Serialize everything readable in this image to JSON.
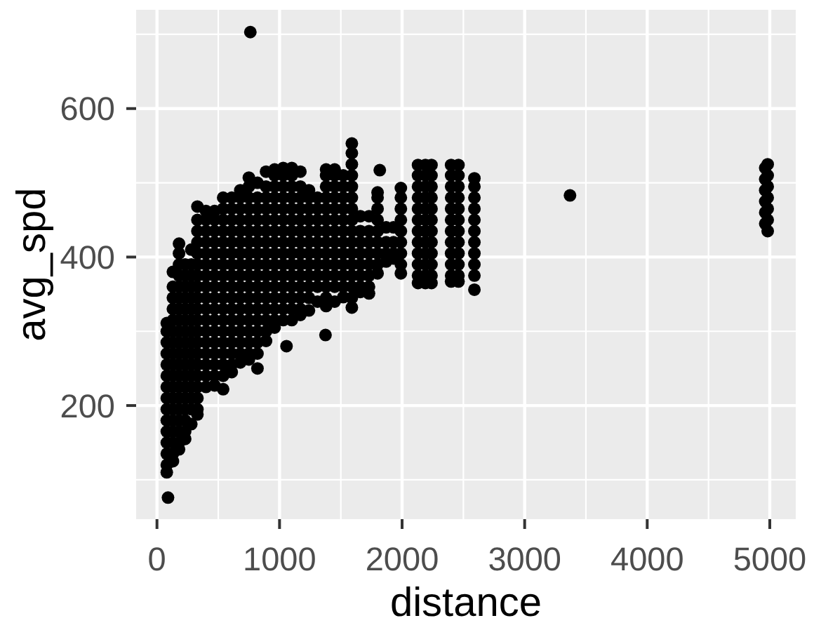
{
  "chart_data": {
    "type": "scatter",
    "xlabel": "distance",
    "ylabel": "avg_spd",
    "xlim": [
      -170,
      5212
    ],
    "ylim": [
      47,
      733
    ],
    "xticks": [
      0,
      {
        "value": 500,
        "label": null
      },
      1000,
      {
        "value": 1500,
        "label": null
      },
      2000,
      {
        "value": 2500,
        "label": null
      },
      3000,
      {
        "value": 3500,
        "label": null
      },
      4000,
      {
        "value": 4500,
        "label": null
      },
      5000
    ],
    "yticks": [
      {
        "value": 100,
        "label": null
      },
      200,
      {
        "value": 300,
        "label": null
      },
      400,
      {
        "value": 500,
        "label": null
      },
      600,
      {
        "value": 700,
        "label": null
      }
    ],
    "grid": true,
    "marker": "circle",
    "color": "#000000",
    "x": [
      80,
      80,
      80,
      80,
      80,
      80,
      80,
      80,
      80,
      80,
      80,
      80,
      80,
      80,
      80,
      130,
      130,
      130,
      130,
      130,
      130,
      130,
      130,
      130,
      130,
      130,
      130,
      130,
      130,
      130,
      130,
      130,
      130,
      180,
      180,
      180,
      180,
      180,
      180,
      180,
      180,
      180,
      180,
      180,
      180,
      180,
      180,
      180,
      180,
      180,
      180,
      180,
      180,
      230,
      230,
      230,
      230,
      230,
      230,
      230,
      230,
      230,
      230,
      230,
      230,
      230,
      230,
      230,
      230,
      230,
      280,
      280,
      280,
      280,
      280,
      280,
      280,
      280,
      280,
      280,
      280,
      280,
      280,
      280,
      280,
      280,
      330,
      330,
      330,
      330,
      330,
      330,
      330,
      330,
      330,
      330,
      330,
      330,
      330,
      330,
      330,
      330,
      330,
      330,
      330,
      330,
      400,
      400,
      400,
      400,
      400,
      400,
      400,
      400,
      400,
      400,
      400,
      400,
      400,
      400,
      400,
      400,
      400,
      470,
      470,
      470,
      470,
      470,
      470,
      470,
      470,
      470,
      470,
      470,
      470,
      470,
      470,
      470,
      470,
      470,
      540,
      540,
      540,
      540,
      540,
      540,
      540,
      540,
      540,
      540,
      540,
      540,
      540,
      540,
      540,
      540,
      540,
      540,
      610,
      610,
      610,
      610,
      610,
      610,
      610,
      610,
      610,
      610,
      610,
      610,
      610,
      610,
      610,
      610,
      610,
      680,
      680,
      680,
      680,
      680,
      680,
      680,
      680,
      680,
      680,
      680,
      680,
      680,
      680,
      680,
      680,
      680,
      750,
      750,
      750,
      750,
      750,
      750,
      750,
      750,
      750,
      750,
      750,
      750,
      750,
      750,
      750,
      750,
      750,
      750,
      820,
      820,
      820,
      820,
      820,
      820,
      820,
      820,
      820,
      820,
      820,
      820,
      820,
      820,
      820,
      820,
      820,
      890,
      890,
      890,
      890,
      890,
      890,
      890,
      890,
      890,
      890,
      890,
      890,
      890,
      890,
      890,
      890,
      960,
      960,
      960,
      960,
      960,
      960,
      960,
      960,
      960,
      960,
      960,
      960,
      960,
      960,
      960,
      960,
      1030,
      1030,
      1030,
      1030,
      1030,
      1030,
      1030,
      1030,
      1030,
      1030,
      1030,
      1030,
      1030,
      1030,
      1030,
      1100,
      1100,
      1100,
      1100,
      1100,
      1100,
      1100,
      1100,
      1100,
      1100,
      1100,
      1100,
      1100,
      1100,
      1100,
      1170,
      1170,
      1170,
      1170,
      1170,
      1170,
      1170,
      1170,
      1170,
      1170,
      1170,
      1170,
      1170,
      1170,
      1240,
      1240,
      1240,
      1240,
      1240,
      1240,
      1240,
      1240,
      1240,
      1240,
      1240,
      1240,
      1310,
      1310,
      1310,
      1310,
      1310,
      1310,
      1310,
      1310,
      1310,
      1310,
      1380,
      1380,
      1380,
      1380,
      1380,
      1380,
      1380,
      1380,
      1380,
      1380,
      1380,
      1380,
      1380,
      1380,
      1450,
      1450,
      1450,
      1450,
      1450,
      1450,
      1450,
      1450,
      1450,
      1450,
      1450,
      1450,
      1450,
      1520,
      1520,
      1520,
      1520,
      1520,
      1520,
      1520,
      1520,
      1520,
      1520,
      1520,
      1520,
      1590,
      1590,
      1590,
      1590,
      1590,
      1590,
      1590,
      1590,
      1590,
      1590,
      1590,
      1590,
      1590,
      1590,
      1590,
      1590,
      1660,
      1660,
      1660,
      1660,
      1660,
      1660,
      1660,
      1660,
      1730,
      1730,
      1730,
      1730,
      1730,
      1730,
      1730,
      1730,
      1800,
      1800,
      1800,
      1800,
      1800,
      1800,
      1800,
      1800,
      1800,
      1870,
      1870,
      1870,
      1870,
      1930,
      1930,
      1930,
      1930,
      1990,
      1990,
      1990,
      1990,
      1990,
      1990,
      1990,
      1990,
      1990,
      2130,
      2130,
      2130,
      2130,
      2130,
      2130,
      2130,
      2130,
      2130,
      2130,
      2130,
      2130,
      2190,
      2190,
      2190,
      2190,
      2190,
      2190,
      2190,
      2190,
      2190,
      2190,
      2190,
      2190,
      2240,
      2240,
      2240,
      2240,
      2240,
      2240,
      2240,
      2240,
      2240,
      2240,
      2240,
      2240,
      2400,
      2400,
      2400,
      2400,
      2400,
      2400,
      2400,
      2400,
      2400,
      2400,
      2400,
      2400,
      2460,
      2460,
      2460,
      2460,
      2460,
      2460,
      2460,
      2460,
      2460,
      2460,
      2460,
      2460,
      2590,
      2590,
      2590,
      2590,
      2590,
      2590,
      2590,
      2590,
      2590,
      2590,
      2590,
      90,
      762,
      3370,
      1057,
      1375,
      1818,
      4963,
      4963,
      4963,
      4963,
      4963,
      4963,
      4983,
      4983,
      4983,
      4983,
      4983,
      4983,
      4983
    ],
    "values": [
      110,
      120,
      135,
      150,
      165,
      180,
      195,
      210,
      225,
      240,
      255,
      270,
      285,
      300,
      311,
      125,
      135,
      150,
      165,
      180,
      195,
      210,
      225,
      240,
      255,
      270,
      285,
      300,
      315,
      330,
      345,
      360,
      380,
      141,
      150,
      165,
      180,
      195,
      210,
      225,
      240,
      255,
      270,
      285,
      300,
      315,
      330,
      345,
      360,
      375,
      390,
      405,
      418,
      155,
      165,
      180,
      195,
      210,
      225,
      240,
      255,
      270,
      285,
      300,
      315,
      330,
      345,
      360,
      375,
      390,
      175,
      195,
      210,
      225,
      240,
      255,
      270,
      285,
      300,
      315,
      330,
      345,
      360,
      375,
      390,
      410,
      188,
      195,
      210,
      225,
      240,
      255,
      270,
      285,
      300,
      315,
      330,
      345,
      360,
      375,
      390,
      405,
      420,
      435,
      450,
      468,
      225,
      240,
      255,
      270,
      285,
      300,
      315,
      330,
      345,
      360,
      375,
      390,
      405,
      420,
      435,
      450,
      462,
      227,
      240,
      255,
      270,
      285,
      300,
      315,
      330,
      345,
      360,
      375,
      390,
      405,
      420,
      435,
      450,
      462,
      222,
      240,
      255,
      270,
      285,
      300,
      315,
      330,
      345,
      360,
      375,
      390,
      405,
      420,
      435,
      450,
      465,
      480,
      245,
      255,
      270,
      285,
      300,
      315,
      330,
      345,
      360,
      375,
      390,
      405,
      420,
      435,
      450,
      465,
      480,
      258,
      270,
      285,
      300,
      315,
      330,
      345,
      360,
      375,
      390,
      405,
      420,
      435,
      450,
      465,
      480,
      490,
      262,
      270,
      285,
      300,
      315,
      330,
      345,
      360,
      375,
      390,
      405,
      420,
      435,
      450,
      465,
      480,
      495,
      507,
      250,
      270,
      285,
      300,
      315,
      330,
      345,
      360,
      375,
      390,
      405,
      420,
      435,
      450,
      465,
      480,
      500,
      287,
      300,
      315,
      330,
      345,
      360,
      375,
      390,
      405,
      420,
      435,
      450,
      465,
      480,
      495,
      515,
      305,
      315,
      330,
      345,
      360,
      375,
      390,
      405,
      420,
      435,
      450,
      465,
      480,
      495,
      510,
      518,
      315,
      330,
      345,
      360,
      375,
      390,
      405,
      420,
      435,
      450,
      465,
      480,
      495,
      510,
      520,
      315,
      330,
      345,
      360,
      375,
      390,
      405,
      420,
      435,
      450,
      465,
      480,
      495,
      510,
      520,
      322,
      330,
      345,
      360,
      375,
      390,
      405,
      420,
      435,
      450,
      465,
      480,
      495,
      515,
      328,
      345,
      360,
      375,
      390,
      405,
      420,
      435,
      450,
      465,
      480,
      490,
      340,
      360,
      375,
      390,
      405,
      420,
      435,
      450,
      465,
      480,
      334,
      345,
      360,
      375,
      390,
      405,
      420,
      435,
      450,
      465,
      480,
      495,
      510,
      518,
      340,
      360,
      375,
      390,
      405,
      420,
      435,
      450,
      465,
      480,
      495,
      510,
      518,
      346,
      360,
      375,
      390,
      405,
      420,
      435,
      450,
      465,
      480,
      495,
      510,
      332,
      345,
      360,
      375,
      390,
      405,
      420,
      435,
      450,
      465,
      480,
      495,
      510,
      525,
      540,
      553,
      353,
      360,
      375,
      390,
      405,
      420,
      435,
      455,
      351,
      360,
      375,
      390,
      405,
      420,
      435,
      455,
      378,
      390,
      405,
      420,
      435,
      450,
      465,
      480,
      487,
      394,
      405,
      420,
      440,
      398,
      405,
      420,
      440,
      378,
      390,
      405,
      420,
      435,
      450,
      465,
      480,
      493,
      365,
      375,
      390,
      405,
      420,
      435,
      450,
      465,
      480,
      495,
      510,
      524,
      365,
      375,
      390,
      405,
      420,
      435,
      450,
      465,
      480,
      495,
      510,
      524,
      365,
      375,
      390,
      405,
      420,
      435,
      450,
      465,
      480,
      495,
      510,
      524,
      367,
      375,
      390,
      405,
      420,
      435,
      450,
      465,
      480,
      495,
      510,
      524,
      367,
      375,
      390,
      405,
      420,
      435,
      450,
      465,
      480,
      495,
      510,
      524,
      356,
      375,
      390,
      405,
      420,
      435,
      450,
      465,
      480,
      495,
      506,
      76,
      703,
      483,
      280,
      295,
      517,
      445,
      460,
      475,
      490,
      505,
      520,
      435,
      450,
      465,
      480,
      495,
      510,
      525
    ]
  }
}
